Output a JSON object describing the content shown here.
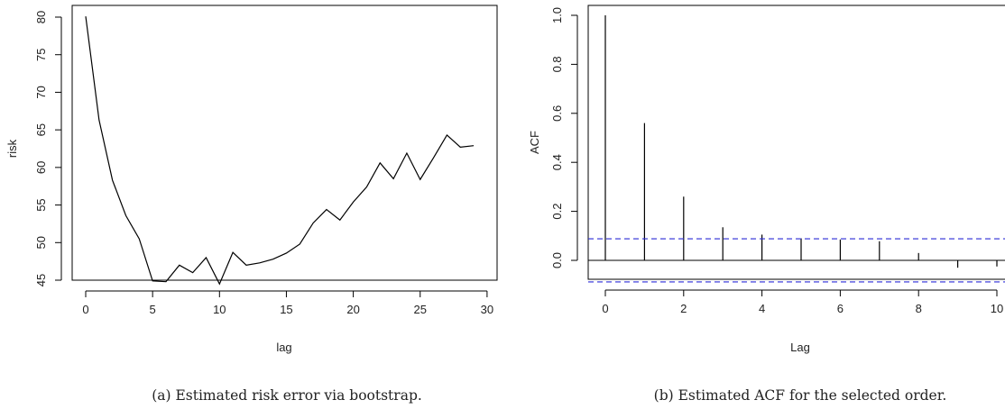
{
  "chart_data": [
    {
      "type": "line",
      "title": "",
      "xlabel": "lag",
      "ylabel": "risk",
      "xlim": [
        0,
        30
      ],
      "ylim": [
        45,
        80
      ],
      "xticks": [
        0,
        5,
        10,
        15,
        20,
        25,
        30
      ],
      "yticks": [
        45,
        50,
        55,
        60,
        65,
        70,
        75,
        80
      ],
      "x": [
        0,
        1,
        2,
        3,
        4,
        5,
        6,
        7,
        8,
        9,
        10,
        11,
        12,
        13,
        14,
        15,
        16,
        17,
        18,
        19,
        20,
        21,
        22,
        23,
        24,
        25,
        26,
        27,
        28,
        29
      ],
      "series": [
        {
          "values": [
            80.1,
            66.3,
            58.3,
            53.6,
            50.5,
            44.9,
            44.8,
            47.0,
            46.0,
            48.0,
            44.5,
            48.7,
            47.0,
            47.3,
            47.8,
            48.6,
            49.8,
            52.6,
            54.4,
            53.0,
            55.4,
            57.4,
            60.6,
            58.5,
            61.9,
            58.4,
            61.3,
            64.3,
            62.7,
            62.9
          ]
        }
      ],
      "caption": "(a) Estimated risk error via bootstrap."
    },
    {
      "type": "bar",
      "title": "",
      "xlabel": "Lag",
      "ylabel": "ACF",
      "xlim": [
        0,
        10
      ],
      "ylim": [
        -0.1,
        1.0
      ],
      "xticks": [
        0,
        2,
        4,
        6,
        8,
        10
      ],
      "yticks": [
        0.0,
        0.2,
        0.4,
        0.6,
        0.8,
        1.0
      ],
      "x": [
        0,
        1,
        2,
        3,
        4,
        5,
        6,
        7,
        8,
        9,
        10
      ],
      "series": [
        {
          "values": [
            1.0,
            0.56,
            0.26,
            0.135,
            0.105,
            0.09,
            0.085,
            0.078,
            0.03,
            -0.03,
            -0.025
          ]
        }
      ],
      "confidence_bounds": [
        0.088,
        -0.088
      ],
      "caption": "(b) Estimated ACF for the selected order."
    }
  ]
}
